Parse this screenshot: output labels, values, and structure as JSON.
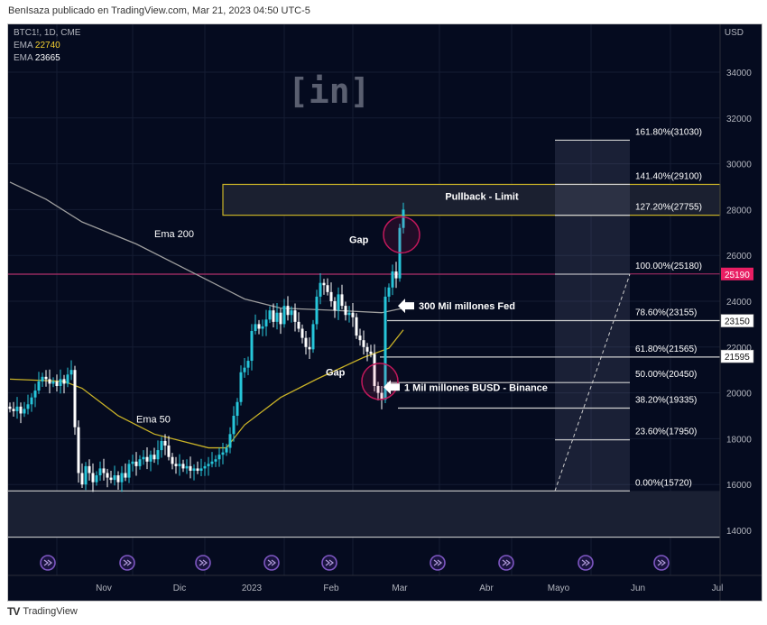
{
  "header": {
    "text": "BenIsaza publicado en TradingView.com, Mar 21, 2023 04:50 UTC-5"
  },
  "legend": {
    "symbol": "BTC1!, 1D, CME",
    "ema1_label": "EMA",
    "ema1_value": "22740",
    "ema2_label": "EMA",
    "ema2_value": "23665"
  },
  "watermark": "[in]",
  "footer": {
    "brand": "TradingView"
  },
  "colors": {
    "bg": "#050b1f",
    "up": "#26c6da",
    "down": "#ffffff",
    "ema50": "#c9b227",
    "ema200": "#9e9e9e",
    "price_line": "#e91e63",
    "box": "#c9b227"
  },
  "chart_data": {
    "type": "candlestick",
    "title": "BTC1!, 1D, CME",
    "currency": "USD",
    "ylim": [
      13000,
      35500
    ],
    "y_ticks": [
      34000,
      32000,
      30000,
      28000,
      26000,
      24000,
      22000,
      20000,
      18000,
      16000,
      14000
    ],
    "x_ticks": [
      {
        "label": "Nov",
        "bar": 13
      },
      {
        "label": "Dic",
        "bar": 34
      },
      {
        "label": "2023",
        "bar": 54
      },
      {
        "label": "Feb",
        "bar": 76
      },
      {
        "label": "Mar",
        "bar": 95
      },
      {
        "label": "Abr",
        "bar": 119
      },
      {
        "label": "Mayo",
        "bar": 139
      },
      {
        "label": "Jun",
        "bar": 161
      },
      {
        "label": "Jul",
        "bar": 183
      }
    ],
    "event_icon_bars": [
      8,
      30,
      51,
      70,
      86,
      116,
      135,
      157,
      178
    ],
    "close": [
      19300,
      19200,
      19400,
      19100,
      19300,
      19500,
      19800,
      20100,
      20500,
      20700,
      20600,
      20400,
      20500,
      20300,
      20600,
      20400,
      20800,
      21000,
      18500,
      16500,
      16000,
      16800,
      16500,
      16100,
      16400,
      16700,
      16500,
      16300,
      16200,
      16400,
      16100,
      16500,
      16300,
      16900,
      17000,
      16800,
      17100,
      17200,
      17000,
      17300,
      17100,
      17500,
      17900,
      17700,
      17200,
      16900,
      16800,
      16900,
      16700,
      16800,
      16600,
      16700,
      16600,
      16700,
      16800,
      16900,
      17000,
      17100,
      17300,
      17400,
      17600,
      18200,
      19000,
      19600,
      20900,
      21100,
      21400,
      22700,
      23000,
      22800,
      22900,
      23200,
      23600,
      23100,
      23500,
      23000,
      23800,
      23400,
      23600,
      23100,
      22800,
      22400,
      22000,
      21900,
      23000,
      24200,
      24800,
      24700,
      24400,
      24000,
      23600,
      24300,
      23800,
      23400,
      23500,
      23300,
      22500,
      22300,
      22000,
      21800,
      21700,
      20300,
      20000,
      19700,
      24200,
      24600,
      25300,
      25000,
      27200,
      28000
    ],
    "ema200": [
      [
        0,
        29200
      ],
      [
        10,
        28450
      ],
      [
        20,
        27460
      ],
      [
        35,
        26500
      ],
      [
        50,
        25300
      ],
      [
        65,
        24100
      ],
      [
        75,
        23700
      ],
      [
        90,
        23600
      ],
      [
        103,
        23500
      ],
      [
        109,
        23700
      ]
    ],
    "ema50": [
      [
        0,
        20600
      ],
      [
        15,
        20500
      ],
      [
        20,
        20200
      ],
      [
        30,
        19000
      ],
      [
        40,
        18200
      ],
      [
        55,
        17600
      ],
      [
        60,
        17600
      ],
      [
        65,
        18600
      ],
      [
        75,
        19800
      ],
      [
        85,
        20600
      ],
      [
        98,
        21550
      ],
      [
        105,
        21950
      ],
      [
        109,
        22750
      ]
    ],
    "series_labels": [
      {
        "text": "Ema 200",
        "bar": 40,
        "price": 26800
      },
      {
        "text": "Ema 50",
        "bar": 35,
        "price": 18700
      }
    ],
    "fib_levels": [
      {
        "label": "161.80%(31030)",
        "price": 31030
      },
      {
        "label": "141.40%(29100)",
        "price": 29100
      },
      {
        "label": "127.20%(27755)",
        "price": 27755
      },
      {
        "label": "100.00%(25180)",
        "price": 25180
      },
      {
        "label": "78.60%(23155)",
        "price": 23155
      },
      {
        "label": "61.80%(21565)",
        "price": 21565
      },
      {
        "label": "50.00%(20450)",
        "price": 20450
      },
      {
        "label": "38.20%(19335)",
        "price": 19335
      },
      {
        "label": "23.60%(17950)",
        "price": 17950
      },
      {
        "label": "0.00%(15720)",
        "price": 15720
      }
    ],
    "pullback_zone": {
      "label": "Pullback - Limit",
      "from": 27755,
      "to": 29100
    },
    "support_zone": {
      "from": 13700,
      "to": 15720
    },
    "annotations": [
      {
        "text": "Gap",
        "bar": 104,
        "price": 26700
      },
      {
        "text": "Gap",
        "bar": 95,
        "price": 20900
      },
      {
        "text": "300 Mil millones Fed",
        "bar": 107,
        "price": 23800
      },
      {
        "text": "1 Mil millones BUSD - Binance",
        "bar": 103,
        "price": 20250
      }
    ],
    "price_tags": [
      {
        "value": "25190",
        "price": 25190,
        "style": "pink"
      },
      {
        "value": "23150",
        "price": 23150,
        "style": "white"
      },
      {
        "value": "21595",
        "price": 21595,
        "style": "white"
      }
    ]
  }
}
